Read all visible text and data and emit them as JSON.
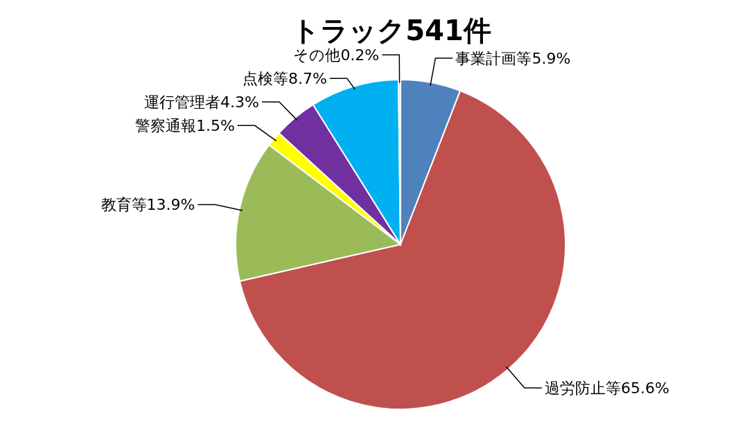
{
  "chart_data": {
    "type": "pie",
    "title": "トラック541件",
    "categories": [
      "事業計画等",
      "過労防止等",
      "教育等",
      "警察通報",
      "運行管理者",
      "点検等",
      "その他"
    ],
    "values": [
      5.9,
      65.6,
      13.9,
      1.5,
      4.3,
      8.7,
      0.2
    ],
    "value_labels": [
      "5.9%",
      "65.6%",
      "13.9%",
      "1.5%",
      "4.3%",
      "8.7%",
      "0.2%"
    ],
    "colors": [
      "#4f81bd",
      "#c0504d",
      "#9bbb59",
      "#ffff00",
      "#7030a0",
      "#00b0f0",
      "#d9d9d9"
    ]
  }
}
